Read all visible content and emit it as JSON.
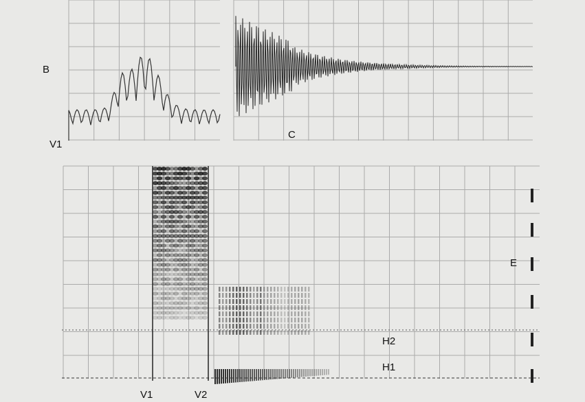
{
  "labels": {
    "b": "B",
    "v1_top": "V1",
    "c": "C",
    "e": "E",
    "h2": "H2",
    "h1": "H1",
    "v1_bottom": "V1",
    "v2": "V2"
  }
}
